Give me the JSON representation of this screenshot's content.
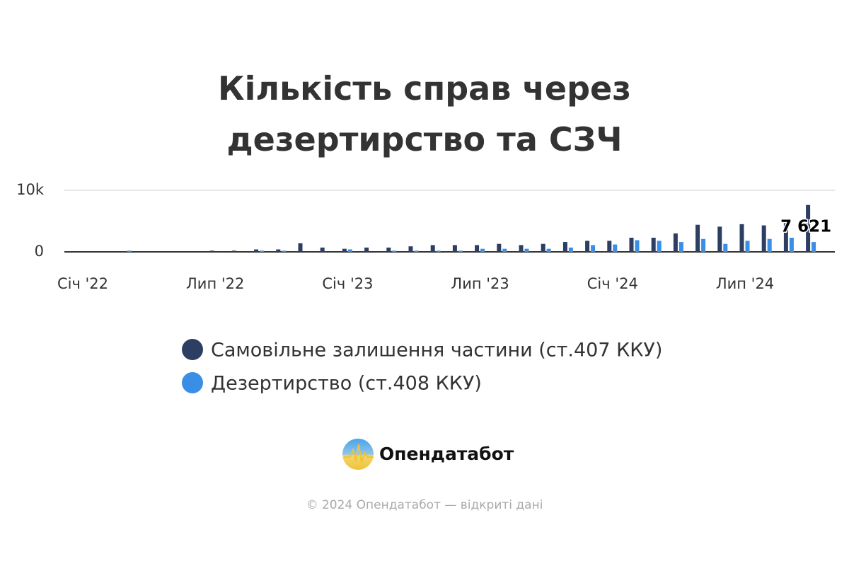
{
  "chart_data": {
    "type": "bar",
    "title": "Кількість справ через дезертирство та СЗЧ",
    "categories": [
      "Січ '22",
      null,
      null,
      null,
      null,
      null,
      "Лип '22",
      null,
      null,
      null,
      null,
      null,
      "Січ '23",
      null,
      null,
      null,
      null,
      null,
      "Лип '23",
      null,
      null,
      null,
      null,
      null,
      "Січ '24",
      null,
      null,
      null,
      null,
      null,
      "Лип '24",
      null,
      null,
      null
    ],
    "series": [
      {
        "name": "Самовільне залишення частини (ст.407 ККУ)",
        "color": "#2d3e63",
        "values": [
          0,
          0,
          0,
          0,
          0,
          0,
          200,
          200,
          400,
          400,
          1400,
          700,
          500,
          700,
          700,
          900,
          1100,
          1100,
          1100,
          1300,
          1100,
          1300,
          1600,
          1800,
          1800,
          2300,
          2300,
          3000,
          4400,
          4100,
          4500,
          4300,
          4800,
          7621
        ],
        "value_labels": [
          null,
          null,
          null,
          null,
          null,
          null,
          null,
          null,
          null,
          null,
          null,
          null,
          null,
          null,
          null,
          null,
          null,
          null,
          null,
          null,
          null,
          null,
          null,
          null,
          null,
          null,
          null,
          null,
          null,
          null,
          null,
          null,
          null,
          "7 621"
        ]
      },
      {
        "name": "Дезертирство (ст.408 ККУ)",
        "color": "#3a8ee6",
        "values": [
          0,
          0,
          200,
          0,
          0,
          0,
          0,
          0,
          200,
          200,
          0,
          0,
          400,
          0,
          200,
          200,
          200,
          200,
          500,
          500,
          500,
          500,
          700,
          1100,
          1200,
          1900,
          1800,
          1600,
          2100,
          1300,
          1800,
          2100,
          2300,
          1600
        ]
      }
    ],
    "ylim": [
      0,
      10000
    ],
    "yticks": [
      0,
      {
        "value": 10000,
        "label": "10k"
      }
    ],
    "grid": true
  },
  "branding": {
    "logo_text": "Опендатабот",
    "footer": "© 2024 Опендатабот — відкриті дані"
  }
}
